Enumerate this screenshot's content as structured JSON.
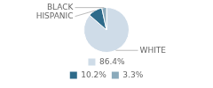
{
  "chart_data": {
    "type": "pie",
    "categories": [
      "WHITE",
      "HISPANIC",
      "BLACK"
    ],
    "values": [
      86.4,
      10.2,
      3.3
    ],
    "value_labels": [
      "86.4%",
      "10.2%",
      "3.3%"
    ],
    "colors": [
      "#cfdce8",
      "#2e6b8a",
      "#8aaabb"
    ],
    "legend": "bottom"
  }
}
